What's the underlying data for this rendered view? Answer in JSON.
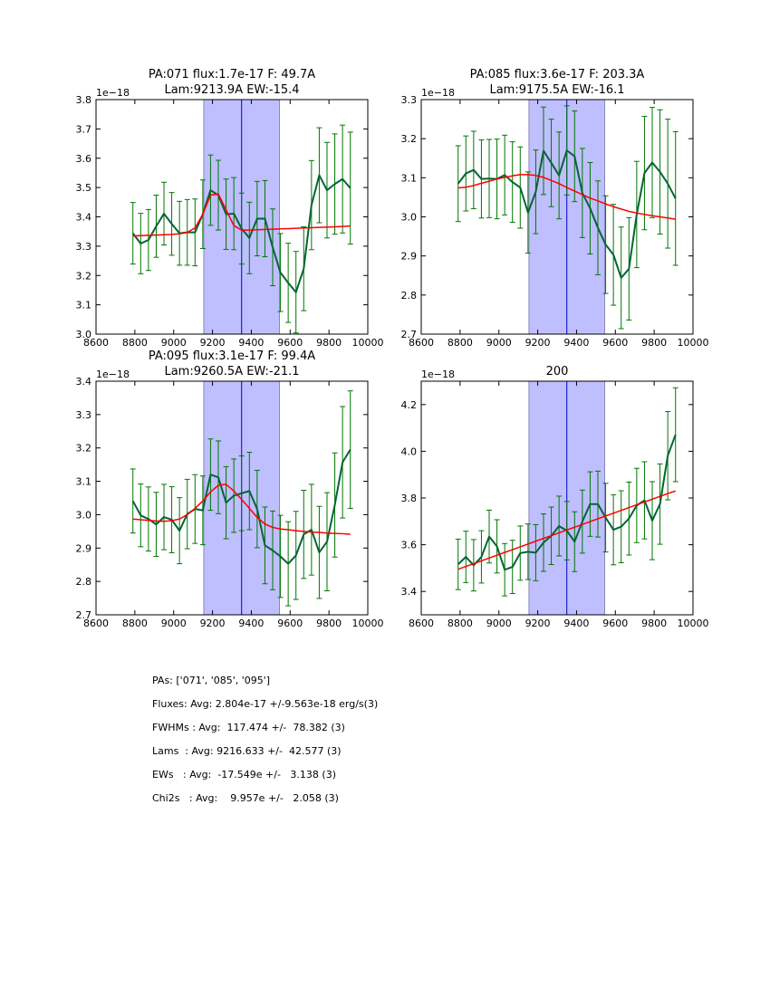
{
  "chart_data": [
    {
      "type": "line",
      "title": "PA:071 flux:1.7e-17 F: 49.7A\nLam:9213.9A EW:-15.4",
      "title_lines": [
        "PA:071 flux:1.7e-17 F: 49.7A",
        "Lam:9213.9A EW:-15.4"
      ],
      "xlabel": "",
      "ylabel": "",
      "y_offset_label": "1e−18",
      "xlim": [
        8600,
        10000
      ],
      "ylim": [
        3.0,
        3.8
      ],
      "xticks": [
        8600,
        8800,
        9000,
        9200,
        9400,
        9600,
        9800,
        10000
      ],
      "yticks": [
        3.0,
        3.1,
        3.2,
        3.3,
        3.4,
        3.5,
        3.6,
        3.7,
        3.8
      ],
      "ytick_labels": [
        "3.0",
        "3.1",
        "3.2",
        "3.3",
        "3.4",
        "3.5",
        "3.6",
        "3.7",
        "3.8"
      ],
      "shaded_span": [
        9155,
        9545
      ],
      "vline": 9350,
      "x": [
        8790,
        8830,
        8870,
        8910,
        8950,
        8990,
        9030,
        9070,
        9110,
        9150,
        9190,
        9230,
        9270,
        9310,
        9350,
        9390,
        9430,
        9470,
        9510,
        9550,
        9590,
        9630,
        9670,
        9710,
        9750,
        9790,
        9830,
        9870,
        9910
      ],
      "series": [
        {
          "name": "data",
          "color": "#006633",
          "values": [
            3.344,
            3.309,
            3.321,
            3.368,
            3.411,
            3.376,
            3.344,
            3.347,
            3.347,
            3.409,
            3.491,
            3.474,
            3.409,
            3.411,
            3.36,
            3.328,
            3.394,
            3.394,
            3.296,
            3.21,
            3.175,
            3.143,
            3.223,
            3.44,
            3.542,
            3.491,
            3.512,
            3.529,
            3.498
          ],
          "errors": [
            0.105,
            0.103,
            0.104,
            0.106,
            0.107,
            0.107,
            0.109,
            0.112,
            0.114,
            0.117,
            0.12,
            0.119,
            0.12,
            0.123,
            0.121,
            0.122,
            0.127,
            0.13,
            0.131,
            0.133,
            0.135,
            0.139,
            0.143,
            0.152,
            0.162,
            0.163,
            0.171,
            0.184,
            0.191
          ]
        },
        {
          "name": "fit",
          "color": "#ff0000",
          "values": [
            3.335,
            3.336,
            3.337,
            3.338,
            3.339,
            3.34,
            3.342,
            3.347,
            3.362,
            3.409,
            3.474,
            3.478,
            3.424,
            3.37,
            3.355,
            3.355,
            3.356,
            3.357,
            3.358,
            3.359,
            3.36,
            3.361,
            3.362,
            3.363,
            3.364,
            3.365,
            3.366,
            3.367,
            3.369
          ]
        }
      ]
    },
    {
      "type": "line",
      "title_lines": [
        "PA:085 flux:3.6e-17 F: 203.3A",
        "Lam:9175.5A EW:-16.1"
      ],
      "xlabel": "",
      "ylabel": "",
      "y_offset_label": "1e−18",
      "xlim": [
        8600,
        10000
      ],
      "ylim": [
        2.7,
        3.3
      ],
      "xticks": [
        8600,
        8800,
        9000,
        9200,
        9400,
        9600,
        9800,
        10000
      ],
      "yticks": [
        2.7,
        2.8,
        2.9,
        3.0,
        3.1,
        3.2,
        3.3
      ],
      "ytick_labels": [
        "2.7",
        "2.8",
        "2.9",
        "3.0",
        "3.1",
        "3.2",
        "3.3"
      ],
      "shaded_span": [
        9155,
        9545
      ],
      "vline": 9350,
      "x": [
        8790,
        8830,
        8870,
        8910,
        8950,
        8990,
        9030,
        9070,
        9110,
        9150,
        9190,
        9230,
        9270,
        9310,
        9350,
        9390,
        9430,
        9470,
        9510,
        9550,
        9590,
        9630,
        9670,
        9710,
        9750,
        9790,
        9830,
        9870,
        9910
      ],
      "series": [
        {
          "name": "data",
          "color": "#006633",
          "values": [
            3.085,
            3.111,
            3.12,
            3.097,
            3.098,
            3.097,
            3.107,
            3.089,
            3.075,
            3.011,
            3.064,
            3.169,
            3.138,
            3.106,
            3.17,
            3.155,
            3.061,
            3.022,
            2.972,
            2.929,
            2.903,
            2.844,
            2.867,
            3.006,
            3.112,
            3.139,
            3.115,
            3.085,
            3.047
          ],
          "errors": [
            0.097,
            0.096,
            0.099,
            0.1,
            0.1,
            0.102,
            0.102,
            0.103,
            0.104,
            0.104,
            0.107,
            0.112,
            0.112,
            0.111,
            0.114,
            0.116,
            0.114,
            0.117,
            0.12,
            0.125,
            0.129,
            0.13,
            0.131,
            0.136,
            0.145,
            0.141,
            0.159,
            0.165,
            0.171
          ]
        },
        {
          "name": "fit",
          "color": "#ff0000",
          "values": [
            3.074,
            3.076,
            3.08,
            3.086,
            3.091,
            3.097,
            3.101,
            3.105,
            3.108,
            3.108,
            3.106,
            3.101,
            3.093,
            3.085,
            3.075,
            3.066,
            3.057,
            3.048,
            3.041,
            3.033,
            3.026,
            3.02,
            3.014,
            3.01,
            3.006,
            3.003,
            3.0,
            2.997,
            2.994
          ]
        }
      ]
    },
    {
      "type": "line",
      "title_lines": [
        "PA:095 flux:3.1e-17 F: 99.4A",
        "Lam:9260.5A EW:-21.1"
      ],
      "xlabel": "",
      "ylabel": "",
      "y_offset_label": "1e−18",
      "xlim": [
        8600,
        10000
      ],
      "ylim": [
        2.7,
        3.4
      ],
      "xticks": [
        8600,
        8800,
        9000,
        9200,
        9400,
        9600,
        9800,
        10000
      ],
      "yticks": [
        2.7,
        2.8,
        2.9,
        3.0,
        3.1,
        3.2,
        3.3,
        3.4
      ],
      "ytick_labels": [
        "2.7",
        "2.8",
        "2.9",
        "3.0",
        "3.1",
        "3.2",
        "3.3",
        "3.4"
      ],
      "shaded_span": [
        9155,
        9545
      ],
      "vline": 9350,
      "x": [
        8790,
        8830,
        8870,
        8910,
        8950,
        8990,
        9030,
        9070,
        9110,
        9150,
        9190,
        9230,
        9270,
        9310,
        9350,
        9390,
        9430,
        9470,
        9510,
        9550,
        9590,
        9630,
        9670,
        9710,
        9750,
        9790,
        9830,
        9870,
        9910
      ],
      "series": [
        {
          "name": "data",
          "color": "#006633",
          "values": [
            3.041,
            2.998,
            2.987,
            2.971,
            2.993,
            2.985,
            2.952,
            3.002,
            3.017,
            3.013,
            3.12,
            3.112,
            3.036,
            3.057,
            3.064,
            3.071,
            3.017,
            2.908,
            2.893,
            2.875,
            2.853,
            2.878,
            2.941,
            2.955,
            2.887,
            2.919,
            3.029,
            3.157,
            3.195
          ],
          "errors": [
            0.096,
            0.094,
            0.096,
            0.096,
            0.098,
            0.099,
            0.099,
            0.104,
            0.103,
            0.103,
            0.107,
            0.109,
            0.108,
            0.11,
            0.112,
            0.116,
            0.116,
            0.115,
            0.118,
            0.123,
            0.126,
            0.132,
            0.132,
            0.136,
            0.138,
            0.147,
            0.156,
            0.167,
            0.176
          ]
        },
        {
          "name": "fit",
          "color": "#ff0000",
          "values": [
            2.987,
            2.985,
            2.983,
            2.981,
            2.98,
            2.982,
            2.987,
            3.0,
            3.019,
            3.041,
            3.068,
            3.088,
            3.091,
            3.071,
            3.046,
            3.019,
            2.992,
            2.972,
            2.962,
            2.957,
            2.955,
            2.952,
            2.95,
            2.948,
            2.947,
            2.945,
            2.944,
            2.943,
            2.941
          ]
        }
      ]
    },
    {
      "type": "line",
      "title_lines": [
        "200"
      ],
      "xlabel": "",
      "ylabel": "",
      "y_offset_label": "1e−18",
      "xlim": [
        8600,
        10000
      ],
      "ylim": [
        3.3,
        4.3
      ],
      "xticks": [
        8600,
        8800,
        9000,
        9200,
        9400,
        9600,
        9800,
        10000
      ],
      "yticks": [
        3.4,
        3.6,
        3.8,
        4.0,
        4.2
      ],
      "ytick_labels": [
        "3.4",
        "3.6",
        "3.8",
        "4.0",
        "4.2"
      ],
      "shaded_span": [
        9155,
        9545
      ],
      "vline": 9350,
      "x": [
        8790,
        8830,
        8870,
        8910,
        8950,
        8990,
        9030,
        9070,
        9110,
        9150,
        9190,
        9230,
        9270,
        9310,
        9350,
        9390,
        9430,
        9470,
        9510,
        9550,
        9590,
        9630,
        9670,
        9710,
        9750,
        9790,
        9830,
        9870,
        9910
      ],
      "series": [
        {
          "name": "data",
          "color": "#006633",
          "values": [
            3.516,
            3.548,
            3.512,
            3.548,
            3.635,
            3.593,
            3.493,
            3.505,
            3.564,
            3.57,
            3.566,
            3.609,
            3.638,
            3.68,
            3.66,
            3.613,
            3.699,
            3.774,
            3.774,
            3.716,
            3.664,
            3.677,
            3.712,
            3.768,
            3.79,
            3.703,
            3.774,
            3.981,
            4.071
          ],
          "errors": [
            0.108,
            0.11,
            0.11,
            0.112,
            0.113,
            0.114,
            0.112,
            0.114,
            0.116,
            0.119,
            0.12,
            0.123,
            0.123,
            0.128,
            0.125,
            0.128,
            0.135,
            0.138,
            0.141,
            0.147,
            0.15,
            0.154,
            0.156,
            0.159,
            0.165,
            0.167,
            0.172,
            0.189,
            0.201
          ]
        },
        {
          "name": "fit",
          "color": "#ff0000",
          "values": [
            3.495,
            3.507,
            3.519,
            3.531,
            3.543,
            3.555,
            3.567,
            3.579,
            3.591,
            3.603,
            3.615,
            3.627,
            3.639,
            3.651,
            3.663,
            3.675,
            3.687,
            3.699,
            3.711,
            3.723,
            3.735,
            3.747,
            3.759,
            3.771,
            3.783,
            3.795,
            3.807,
            3.819,
            3.83
          ]
        }
      ]
    }
  ],
  "colors": {
    "data_line": "#006633",
    "error_bars": "#007700",
    "fit_line": "#ff0000",
    "span_fill": "#bfbfff",
    "span_edge": "#8888bb",
    "vline": "#0000cc"
  },
  "stats": {
    "lines": [
      "PAs: ['071', '085', '095']",
      "Fluxes: Avg: 2.804e-17 +/-9.563e-18 erg/s(3)",
      "FWHMs : Avg:  117.474 +/-  78.382 (3)",
      "Lams  : Avg: 9216.633 +/-  42.577 (3)",
      "EWs   : Avg:  -17.549e +/-   3.138 (3)",
      "Chi2s   : Avg:    9.957e +/-   2.058 (3)"
    ]
  }
}
